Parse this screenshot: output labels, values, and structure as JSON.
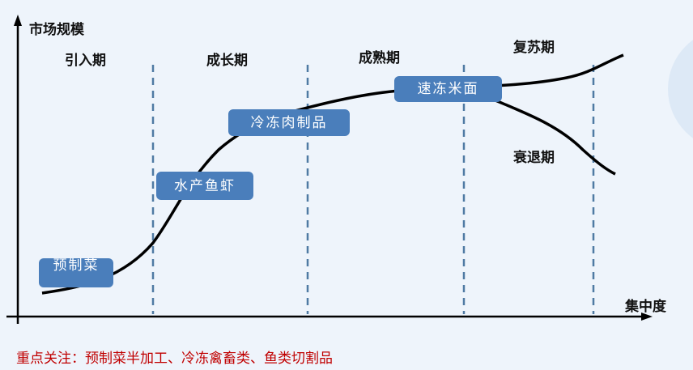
{
  "axes": {
    "y_label": "市场规模",
    "x_label": "集中度"
  },
  "stages": [
    "引入期",
    "成长期",
    "成熟期",
    "复苏期",
    "衰退期"
  ],
  "products": [
    "预制菜",
    "水产鱼虾",
    "冷冻肉制品",
    "速冻米面"
  ],
  "note": "重点关注：预制菜半加工、冷冻禽畜类、鱼类切割品",
  "colors": {
    "box": "#4a7ebb",
    "note": "#c00000",
    "dash": "#4f7aa3",
    "background": "#eef4fb"
  }
}
